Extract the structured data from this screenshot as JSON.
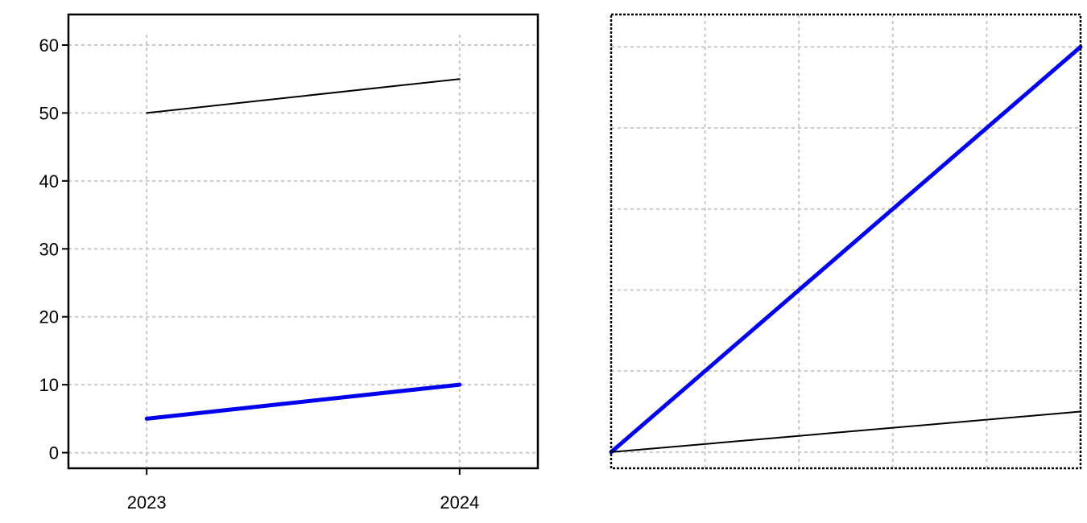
{
  "chart_data": [
    {
      "type": "line",
      "title": "",
      "xlabel": "",
      "ylabel": "",
      "x": [
        2023,
        2024
      ],
      "xticks": [
        "2023",
        "2024"
      ],
      "yticks": [
        "0",
        "10",
        "20",
        "30",
        "40",
        "50",
        "60"
      ],
      "xlim": [
        2022.75,
        2024.25
      ],
      "ylim": [
        -2.3,
        64.5
      ],
      "grid": true,
      "series": [
        {
          "values": [
            50,
            55
          ],
          "color": "#000000"
        },
        {
          "values": [
            5,
            10
          ],
          "color": "#0000ee"
        }
      ]
    },
    {
      "type": "line",
      "title": "",
      "xlabel": "",
      "ylabel": "",
      "x": [
        0,
        5
      ],
      "xlim": [
        0,
        5
      ],
      "ylim": [
        -0.2,
        5.4
      ],
      "grid": true,
      "show_tick_labels": false,
      "series": [
        {
          "values": [
            0,
            5
          ],
          "color": "#0000ee"
        },
        {
          "values": [
            0,
            0.5
          ],
          "color": "#000000"
        }
      ]
    }
  ]
}
